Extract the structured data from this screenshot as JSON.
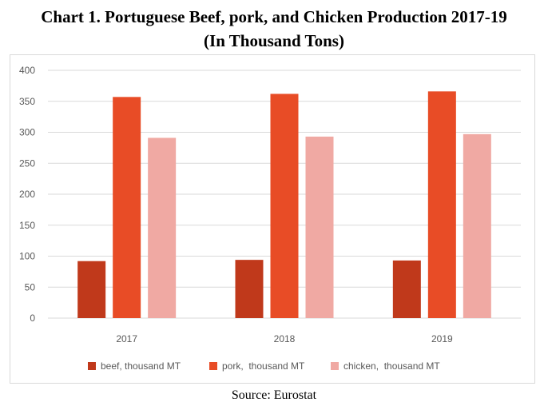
{
  "title_line1": "Chart 1. Portuguese Beef, pork, and Chicken Production 2017-19",
  "title_line2": "(In Thousand Tons)",
  "source": "Source: Eurostat",
  "chart_data": {
    "type": "bar",
    "categories": [
      "2017",
      "2018",
      "2019"
    ],
    "series": [
      {
        "name": "beef, thousand MT",
        "values": [
          92,
          94,
          93
        ],
        "color": "#c0391b"
      },
      {
        "name": "pork,  thousand MT",
        "values": [
          357,
          362,
          366
        ],
        "color": "#e84c26"
      },
      {
        "name": "chicken,  thousand MT",
        "values": [
          291,
          293,
          297
        ],
        "color": "#f0a9a3"
      }
    ],
    "ylim": [
      0,
      400
    ],
    "yticks": [
      0,
      50,
      100,
      150,
      200,
      250,
      300,
      350,
      400
    ],
    "grid": true,
    "legend": "bottom"
  }
}
